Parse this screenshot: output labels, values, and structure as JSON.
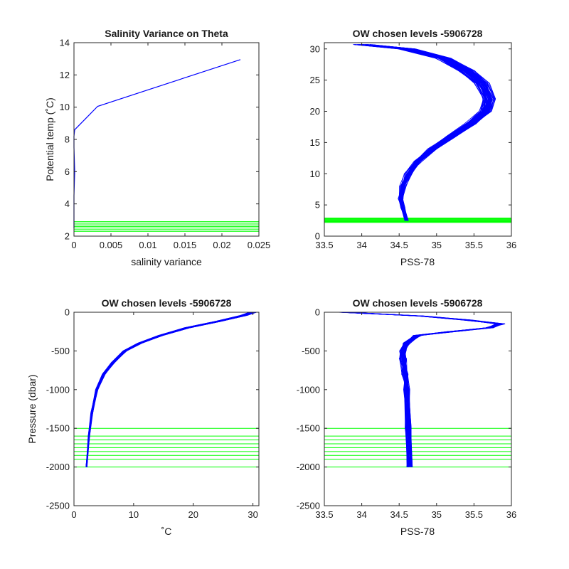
{
  "colors": {
    "profiles": "#0000ff",
    "chosen_levels": "#00ff00",
    "axes": "#262626"
  },
  "chart_data": [
    {
      "id": "p1",
      "type": "line",
      "title": "Salinity Variance on Theta",
      "xlabel": "salinity variance",
      "ylabel": "Potential temp (˚C)",
      "xlim": [
        0,
        0.025
      ],
      "ylim": [
        2,
        14
      ],
      "xticks": [
        0,
        0.005,
        0.01,
        0.015,
        0.02,
        0.025
      ],
      "xtick_labels": [
        "0",
        "0.005",
        "0.01",
        "0.015",
        "0.02",
        "0.025"
      ],
      "yticks": [
        2,
        4,
        6,
        8,
        10,
        12,
        14
      ],
      "ytick_labels": [
        "2",
        "4",
        "6",
        "8",
        "10",
        "12",
        "14"
      ],
      "grid": false,
      "series": [
        {
          "x": [
            0.0225,
            0.0032,
            0.0001,
            0.0,
            0.0,
            0.0001,
            0.0,
            0.0,
            0.0
          ],
          "y": [
            12.95,
            10.05,
            8.6,
            8.2,
            7.5,
            6.0,
            4.5,
            3.0,
            2.5
          ]
        }
      ],
      "chosen_levels": [
        2.3,
        2.4,
        2.5,
        2.6,
        2.7,
        2.8,
        2.9
      ],
      "profile_bundle": null
    },
    {
      "id": "p2",
      "type": "line",
      "title": "OW chosen levels -5906728",
      "xlabel": "PSS-78",
      "ylabel": "",
      "xlim": [
        33.5,
        36
      ],
      "ylim": [
        0,
        31
      ],
      "xticks": [
        33.5,
        34,
        34.5,
        35,
        35.5,
        36
      ],
      "xtick_labels": [
        "33.5",
        "34",
        "34.5",
        "35",
        "35.5",
        "36"
      ],
      "yticks": [
        0,
        5,
        10,
        15,
        20,
        25,
        30
      ],
      "ytick_labels": [
        "0",
        "5",
        "10",
        "15",
        "20",
        "25",
        "30"
      ],
      "grid": false,
      "series": [],
      "chosen_levels": [
        2.2,
        2.3,
        2.4,
        2.5,
        2.6,
        2.7,
        2.8,
        2.9
      ],
      "profile_bundle": {
        "count": 60,
        "spread": 0.12,
        "jitter": 0.05,
        "x": [
          34.6,
          34.55,
          34.52,
          34.55,
          34.62,
          34.75,
          34.95,
          35.2,
          35.45,
          35.65,
          35.7,
          35.6,
          35.4,
          35.1,
          34.6,
          34.0
        ],
        "y": [
          2.5,
          4.5,
          6.0,
          8.0,
          10.0,
          12.0,
          14.0,
          16.0,
          18.0,
          20.0,
          22.0,
          24.5,
          26.5,
          28.5,
          30.0,
          30.7
        ]
      }
    },
    {
      "id": "p3",
      "type": "line",
      "title": "OW chosen levels -5906728",
      "xlabel": "˚C",
      "ylabel": "Pressure (dbar)",
      "xlim": [
        0,
        31
      ],
      "ylim": [
        -2500,
        0
      ],
      "xticks": [
        0,
        10,
        20,
        30
      ],
      "xtick_labels": [
        "0",
        "10",
        "20",
        "30"
      ],
      "yticks": [
        -2500,
        -2000,
        -1500,
        -1000,
        -500,
        0
      ],
      "ytick_labels": [
        "-2500",
        "-2000",
        "-1500",
        "-1000",
        "-500",
        "0"
      ],
      "grid": false,
      "series": [],
      "chosen_levels": [
        -1500,
        -1600,
        -1650,
        -1700,
        -1750,
        -1800,
        -1850,
        -1900,
        -2000
      ],
      "profile_bundle": {
        "count": 40,
        "spread": 0.6,
        "jitter": 0.2,
        "x": [
          2.1,
          2.5,
          3.0,
          3.8,
          5.0,
          6.5,
          8.5,
          11.0,
          14.5,
          19.0,
          24.0,
          28.5,
          30.0
        ],
        "y": [
          -2000,
          -1600,
          -1300,
          -1000,
          -800,
          -650,
          -500,
          -400,
          -300,
          -200,
          -120,
          -40,
          0
        ]
      }
    },
    {
      "id": "p4",
      "type": "line",
      "title": "OW chosen levels -5906728",
      "xlabel": "PSS-78",
      "ylabel": "",
      "xlim": [
        33.5,
        36
      ],
      "ylim": [
        -2500,
        0
      ],
      "xticks": [
        33.5,
        34,
        34.5,
        35,
        35.5,
        36
      ],
      "xtick_labels": [
        "33.5",
        "34",
        "34.5",
        "35",
        "35.5",
        "36"
      ],
      "yticks": [
        -2500,
        -2000,
        -1500,
        -1000,
        -500,
        0
      ],
      "ytick_labels": [
        "-2500",
        "-2000",
        "-1500",
        "-1000",
        "-500",
        "0"
      ],
      "grid": false,
      "series": [],
      "chosen_levels": [
        -1500,
        -1600,
        -1650,
        -1700,
        -1750,
        -1800,
        -1850,
        -1900,
        -2000
      ],
      "profile_bundle": {
        "count": 45,
        "spread": 0.05,
        "jitter": 0.08,
        "x": [
          34.64,
          34.62,
          34.6,
          34.58,
          34.55,
          34.55,
          34.6,
          34.75,
          35.2,
          35.7,
          35.85,
          35.4,
          34.8,
          33.75
        ],
        "y": [
          -2000,
          -1500,
          -1000,
          -800,
          -600,
          -500,
          -400,
          -300,
          -250,
          -200,
          -150,
          -100,
          -50,
          0
        ]
      }
    }
  ]
}
